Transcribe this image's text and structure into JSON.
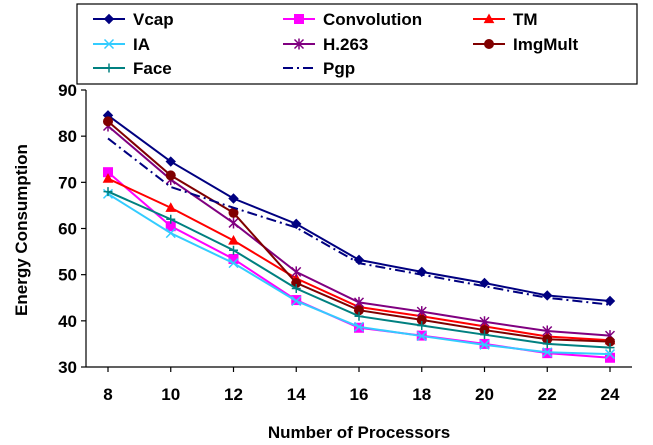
{
  "chart_data": {
    "type": "line",
    "title": "",
    "xlabel": "Number of Processors",
    "ylabel": "Energy Consumption",
    "x": [
      8,
      10,
      12,
      14,
      16,
      18,
      20,
      22,
      24
    ],
    "x_ticks": [
      "8",
      "10",
      "12",
      "14",
      "16",
      "18",
      "20",
      "22",
      "24"
    ],
    "ylim": [
      30,
      90
    ],
    "y_ticks": [
      "30",
      "40",
      "50",
      "60",
      "70",
      "80",
      "90"
    ],
    "grid": false,
    "legend_position": "top",
    "series": [
      {
        "name": "Vcap",
        "color": "#000080",
        "marker": "diamond",
        "dash": "solid",
        "values": [
          84.5,
          74.5,
          66.5,
          61,
          53.2,
          50.6,
          48.2,
          45.5,
          44.3
        ]
      },
      {
        "name": "Convolution",
        "color": "#FF00FF",
        "marker": "square",
        "dash": "solid",
        "values": [
          72.2,
          60.5,
          53.4,
          44.5,
          38.5,
          36.8,
          35,
          33,
          32
        ]
      },
      {
        "name": "TM",
        "color": "#FF0000",
        "marker": "triangle",
        "dash": "solid",
        "values": [
          70.8,
          64.5,
          57.4,
          49.2,
          43,
          41,
          38.8,
          36.6,
          35.8
        ]
      },
      {
        "name": "IA",
        "color": "#33CCFF",
        "marker": "x",
        "dash": "solid",
        "values": [
          67.5,
          59,
          52.5,
          44.3,
          38.7,
          36.7,
          34.8,
          33.2,
          32.8
        ]
      },
      {
        "name": "H.263",
        "color": "#800080",
        "marker": "asterisk",
        "dash": "solid",
        "values": [
          82.2,
          70.6,
          61.2,
          50.6,
          44,
          42,
          39.8,
          37.8,
          36.8
        ]
      },
      {
        "name": "ImgMult",
        "color": "#800000",
        "marker": "circle",
        "dash": "solid",
        "values": [
          83.2,
          71.5,
          63.4,
          48.2,
          42.3,
          40.2,
          38,
          36,
          35.5
        ]
      },
      {
        "name": "Face",
        "color": "#008080",
        "marker": "plus",
        "dash": "solid",
        "values": [
          68,
          62,
          55.3,
          47,
          41,
          39,
          37,
          35,
          34.2
        ]
      },
      {
        "name": "Pgp",
        "color": "#000080",
        "marker": "none",
        "dash": "dashdot",
        "values": [
          79.5,
          69,
          64.5,
          60.2,
          52.5,
          50,
          47.5,
          45,
          43.5
        ]
      }
    ]
  }
}
